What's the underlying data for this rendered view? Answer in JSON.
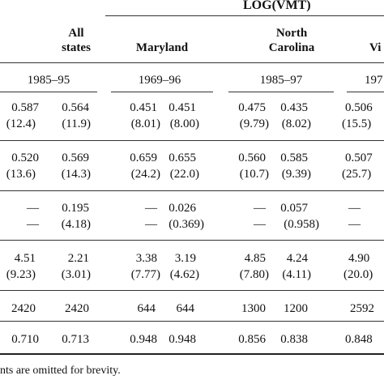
{
  "header": {
    "group_label": "LOG(VMT)",
    "states": [
      {
        "line1": "All",
        "line2": "states"
      },
      {
        "line1": "",
        "line2": "Maryland"
      },
      {
        "line1": "North",
        "line2": "Carolina"
      },
      {
        "line1": "",
        "line2": "Vi"
      }
    ],
    "periods": [
      "1985–95",
      "1969–96",
      "1985–97",
      "197"
    ]
  },
  "rows": [
    {
      "a": [
        "0.587",
        "0.564",
        "0.451",
        "0.451",
        "0.475",
        "0.435",
        "0.506"
      ]
    },
    {
      "a": [
        "(12.4)",
        "(11.9)",
        "(8.01)",
        "(8.00)",
        "(9.79)",
        "(8.02)",
        "(15.5)"
      ]
    },
    {
      "a": [
        "0.520",
        "0.569",
        "0.659",
        "0.655",
        "0.560",
        "0.585",
        "0.507"
      ]
    },
    {
      "a": [
        "(13.6)",
        "(14.3)",
        "(24.2)",
        "(22.0)",
        "(10.7)",
        "(9.39)",
        "(25.7)"
      ]
    },
    {
      "a": [
        "—",
        "0.195",
        "—",
        "0.026",
        "—",
        "0.057",
        "—"
      ]
    },
    {
      "a": [
        "—",
        "(4.18)",
        "—",
        "(0.369)",
        "—",
        "(0.958)",
        "—"
      ]
    },
    {
      "a": [
        "4.51",
        "2.21",
        "3.38",
        "3.19",
        "4.85",
        "4.24",
        "4.90"
      ]
    },
    {
      "a": [
        "(9.23)",
        "(3.01)",
        "(7.77)",
        "(4.62)",
        "(7.80)",
        "(4.11)",
        "(20.0)"
      ]
    },
    {
      "a": [
        "2420",
        "2420",
        "644",
        "644",
        "1300",
        "1200",
        "2592"
      ]
    },
    {
      "a": [
        "0.710",
        "0.713",
        "0.948",
        "0.948",
        "0.856",
        "0.838",
        "0.848"
      ]
    }
  ],
  "footnote": "nts are omitted for brevity."
}
